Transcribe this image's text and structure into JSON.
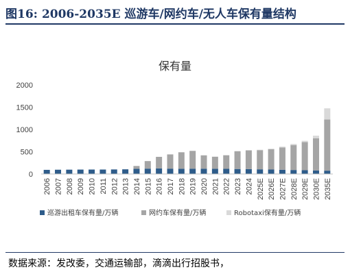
{
  "figure": {
    "number_label": "图16:",
    "title": "2006-2035E 巡游车/网约车/无人车保有量结构",
    "source": "数据来源：发改委，交通运输部，滴滴出行招股书，"
  },
  "colors": {
    "header": "#1f3864",
    "taxi": "#2e5c8a",
    "ride_hailing": "#a5a5a5",
    "robotaxi": "#d9d9d9"
  },
  "chart_data": {
    "type": "bar",
    "stacked": true,
    "title": "保有量",
    "xlabel": "",
    "ylabel": "",
    "ylim": [
      0,
      2000
    ],
    "yticks": [
      0,
      500,
      1000,
      1500,
      2000
    ],
    "grid": false,
    "legend_position": "bottom",
    "categories": [
      "2006",
      "2007",
      "2008",
      "2009",
      "2010",
      "2011",
      "2012",
      "2013",
      "2014",
      "2015",
      "2016",
      "2017",
      "2018",
      "2019",
      "2020",
      "2021",
      "2022",
      "2023",
      "2024",
      "2025E",
      "2026E",
      "2027E",
      "2028E",
      "2029E",
      "2030E",
      "2035E"
    ],
    "series": [
      {
        "name": "巡游出租车保有量/万辆",
        "color": "#2e5c8a",
        "values": [
          93,
          96,
          97,
          99,
          100,
          100,
          102,
          105,
          115,
          120,
          125,
          120,
          118,
          119,
          119,
          118,
          116,
          112,
          110,
          105,
          100,
          95,
          90,
          85,
          80,
          75
        ]
      },
      {
        "name": "网约车保有量/万辆",
        "color": "#a5a5a5",
        "values": [
          0,
          0,
          0,
          0,
          0,
          0,
          0,
          0,
          65,
          170,
          260,
          320,
          370,
          400,
          300,
          270,
          305,
          400,
          420,
          430,
          455,
          500,
          560,
          630,
          720,
          1150
        ]
      },
      {
        "name": "Robotaxi保有量/万辆",
        "color": "#d9d9d9",
        "values": [
          0,
          0,
          0,
          0,
          0,
          0,
          0,
          0,
          0,
          0,
          0,
          0,
          0,
          0,
          0,
          0,
          0,
          0,
          5,
          10,
          15,
          20,
          25,
          30,
          60,
          250
        ]
      }
    ]
  }
}
